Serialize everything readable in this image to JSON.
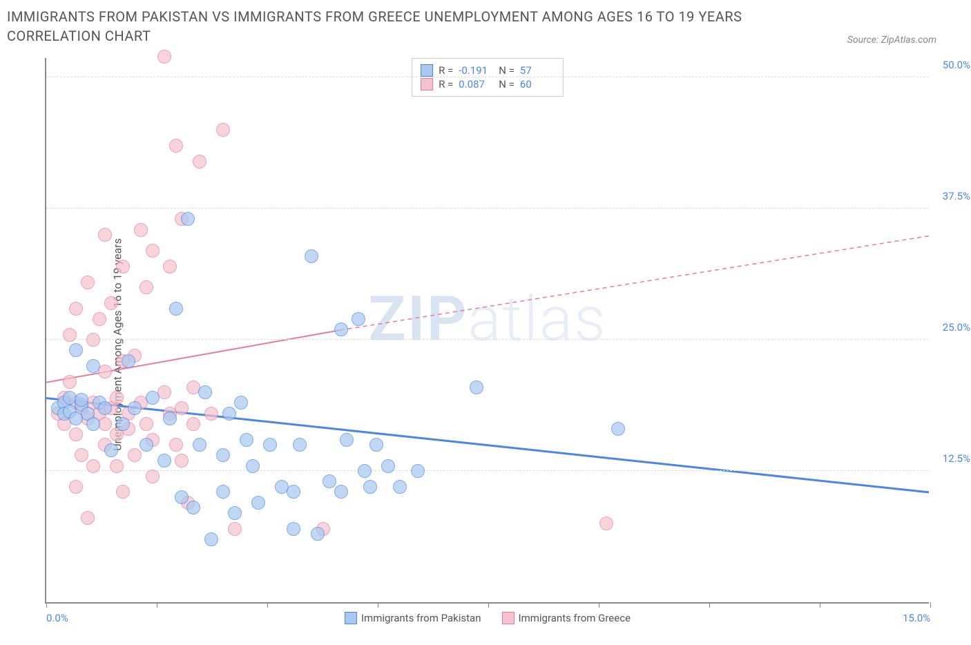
{
  "title": "IMMIGRANTS FROM PAKISTAN VS IMMIGRANTS FROM GREECE UNEMPLOYMENT AMONG AGES 16 TO 19 YEARS CORRELATION CHART",
  "source_label": "Source: ZipAtlas.com",
  "ylabel": "Unemployment Among Ages 16 to 19 years",
  "watermark": {
    "part1": "ZIP",
    "part2": "atlas"
  },
  "chart": {
    "type": "scatter",
    "xlim": [
      0,
      15
    ],
    "ylim": [
      0,
      52
    ],
    "xtick_labels": [
      {
        "value": 0,
        "label": "0.0%"
      },
      {
        "value": 15,
        "label": "15.0%"
      }
    ],
    "xtick_positions": [
      0,
      1.875,
      3.75,
      5.625,
      7.5,
      9.375,
      11.25,
      13.125,
      15
    ],
    "ytick_labels": [
      {
        "value": 12.5,
        "label": "12.5%"
      },
      {
        "value": 25.0,
        "label": "25.0%"
      },
      {
        "value": 37.5,
        "label": "37.5%"
      },
      {
        "value": 50.0,
        "label": "50.0%"
      }
    ],
    "background_color": "#ffffff",
    "grid_color": "#dddddd",
    "axis_color": "#888888",
    "point_radius": 10,
    "point_opacity": 0.35,
    "series": [
      {
        "name": "Immigrants from Pakistan",
        "color_fill": "#a8c8f0",
        "color_stroke": "#4a86e8",
        "legend_R": "-0.191",
        "legend_N": "57",
        "trend": {
          "x1": 0,
          "y1": 19.5,
          "x2": 15,
          "y2": 10.5,
          "stroke": "#4a86e8",
          "width": 3,
          "dash": "none"
        },
        "points": [
          [
            0.2,
            18.5
          ],
          [
            0.3,
            19.0
          ],
          [
            0.3,
            18.0
          ],
          [
            0.4,
            19.5
          ],
          [
            0.4,
            18.2
          ],
          [
            0.5,
            17.5
          ],
          [
            0.5,
            24.0
          ],
          [
            0.6,
            18.8
          ],
          [
            0.6,
            19.3
          ],
          [
            0.7,
            18.0
          ],
          [
            0.8,
            22.5
          ],
          [
            0.8,
            17.0
          ],
          [
            0.9,
            19.0
          ],
          [
            1.0,
            18.5
          ],
          [
            1.3,
            17.0
          ],
          [
            1.4,
            23.0
          ],
          [
            1.5,
            18.5
          ],
          [
            1.7,
            15.0
          ],
          [
            1.8,
            19.5
          ],
          [
            2.0,
            13.5
          ],
          [
            2.1,
            17.5
          ],
          [
            2.2,
            28.0
          ],
          [
            2.3,
            10.0
          ],
          [
            2.4,
            36.5
          ],
          [
            2.5,
            9.0
          ],
          [
            2.6,
            15.0
          ],
          [
            2.7,
            20.0
          ],
          [
            2.8,
            6.0
          ],
          [
            3.0,
            10.5
          ],
          [
            3.0,
            14.0
          ],
          [
            3.2,
            8.5
          ],
          [
            3.3,
            19.0
          ],
          [
            3.4,
            15.5
          ],
          [
            3.5,
            13.0
          ],
          [
            3.6,
            9.5
          ],
          [
            3.8,
            15.0
          ],
          [
            4.0,
            11.0
          ],
          [
            4.2,
            7.0
          ],
          [
            4.2,
            10.5
          ],
          [
            4.3,
            15.0
          ],
          [
            4.5,
            33.0
          ],
          [
            4.6,
            6.5
          ],
          [
            4.8,
            11.5
          ],
          [
            5.0,
            26.0
          ],
          [
            5.0,
            10.5
          ],
          [
            5.1,
            15.5
          ],
          [
            5.3,
            27.0
          ],
          [
            5.4,
            12.5
          ],
          [
            5.5,
            11.0
          ],
          [
            5.6,
            15.0
          ],
          [
            5.8,
            13.0
          ],
          [
            6.0,
            11.0
          ],
          [
            6.3,
            12.5
          ],
          [
            7.3,
            20.5
          ],
          [
            9.7,
            16.5
          ],
          [
            3.1,
            18.0
          ],
          [
            1.1,
            14.5
          ]
        ]
      },
      {
        "name": "Immigrants from Greece",
        "color_fill": "#f5c2cd",
        "color_stroke": "#e87a9a",
        "legend_R": "0.087",
        "legend_N": "60",
        "trend_solid": {
          "x1": 0,
          "y1": 21.0,
          "x2": 5.0,
          "y2": 26.0,
          "stroke": "#e87a9a",
          "width": 2
        },
        "trend_dashed": {
          "x1": 5.0,
          "y1": 26.0,
          "x2": 15,
          "y2": 35.0,
          "stroke": "#e87a9a",
          "width": 1.5,
          "dash": "6,5"
        },
        "points": [
          [
            0.2,
            18.0
          ],
          [
            0.3,
            19.5
          ],
          [
            0.3,
            17.0
          ],
          [
            0.4,
            21.0
          ],
          [
            0.4,
            25.5
          ],
          [
            0.5,
            19.0
          ],
          [
            0.5,
            16.0
          ],
          [
            0.5,
            28.0
          ],
          [
            0.6,
            18.5
          ],
          [
            0.6,
            14.0
          ],
          [
            0.7,
            17.5
          ],
          [
            0.7,
            30.5
          ],
          [
            0.8,
            19.0
          ],
          [
            0.8,
            13.0
          ],
          [
            0.8,
            25.0
          ],
          [
            0.9,
            18.0
          ],
          [
            0.9,
            27.0
          ],
          [
            1.0,
            17.0
          ],
          [
            1.0,
            15.0
          ],
          [
            1.0,
            35.0
          ],
          [
            1.1,
            18.5
          ],
          [
            1.1,
            28.5
          ],
          [
            1.2,
            16.0
          ],
          [
            1.2,
            19.5
          ],
          [
            1.2,
            13.0
          ],
          [
            1.3,
            23.0
          ],
          [
            1.3,
            32.0
          ],
          [
            1.4,
            18.0
          ],
          [
            1.4,
            16.5
          ],
          [
            1.5,
            14.0
          ],
          [
            1.5,
            23.5
          ],
          [
            1.6,
            19.0
          ],
          [
            1.6,
            35.5
          ],
          [
            1.7,
            17.0
          ],
          [
            1.7,
            30.0
          ],
          [
            1.8,
            15.5
          ],
          [
            1.8,
            33.5
          ],
          [
            2.0,
            20.0
          ],
          [
            2.0,
            52.0
          ],
          [
            2.1,
            18.0
          ],
          [
            2.1,
            32.0
          ],
          [
            2.2,
            15.0
          ],
          [
            2.2,
            43.5
          ],
          [
            2.3,
            18.5
          ],
          [
            2.3,
            36.5
          ],
          [
            2.4,
            9.5
          ],
          [
            2.5,
            17.0
          ],
          [
            2.5,
            20.5
          ],
          [
            2.6,
            42.0
          ],
          [
            2.8,
            18.0
          ],
          [
            3.0,
            45.0
          ],
          [
            3.2,
            7.0
          ],
          [
            1.0,
            22.0
          ],
          [
            0.7,
            8.0
          ],
          [
            0.5,
            11.0
          ],
          [
            1.3,
            10.5
          ],
          [
            1.8,
            12.0
          ],
          [
            2.3,
            13.5
          ],
          [
            4.7,
            7.0
          ],
          [
            9.5,
            7.5
          ]
        ]
      }
    ]
  },
  "legend_top": {
    "R_label": "R =",
    "N_label": "N ="
  },
  "bottom_legend": {
    "items": [
      "Immigrants from Pakistan",
      "Immigrants from Greece"
    ]
  }
}
